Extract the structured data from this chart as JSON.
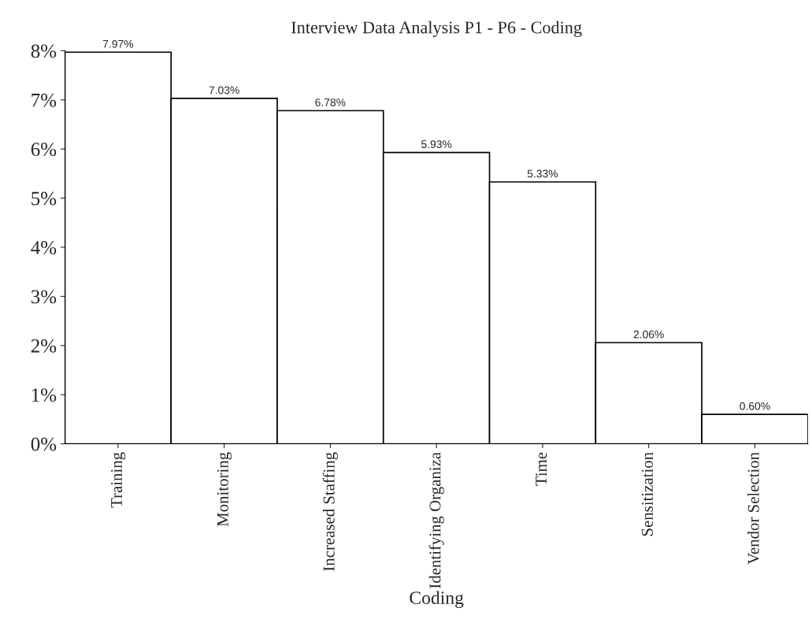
{
  "chart_data": {
    "type": "bar",
    "title": "Interview Data Analysis P1 - P6 - Coding",
    "xlabel": "Coding",
    "categories": [
      "Training",
      "Monitoring",
      "Increased Staffing",
      "Identifying Organiza",
      "Time",
      "Sensitization",
      "Vendor Selection"
    ],
    "values": [
      7.97,
      7.03,
      6.78,
      5.93,
      5.33,
      2.06,
      0.6
    ],
    "value_labels": [
      "7.97%",
      "7.03%",
      "6.78%",
      "5.93%",
      "5.33%",
      "2.06%",
      "0.60%"
    ],
    "color": "#ffffff",
    "ylim": [
      0,
      8
    ],
    "yticks": [
      {
        "value": 0,
        "label": "0%"
      },
      {
        "value": 1,
        "label": "1%"
      },
      {
        "value": 2,
        "label": "2%"
      },
      {
        "value": 3,
        "label": "3%"
      },
      {
        "value": 4,
        "label": "4%"
      },
      {
        "value": 5,
        "label": "5%"
      },
      {
        "value": 6,
        "label": "6%"
      },
      {
        "value": 7,
        "label": "7%"
      },
      {
        "value": 8,
        "label": "8%"
      }
    ],
    "grid": false,
    "legend": false
  }
}
